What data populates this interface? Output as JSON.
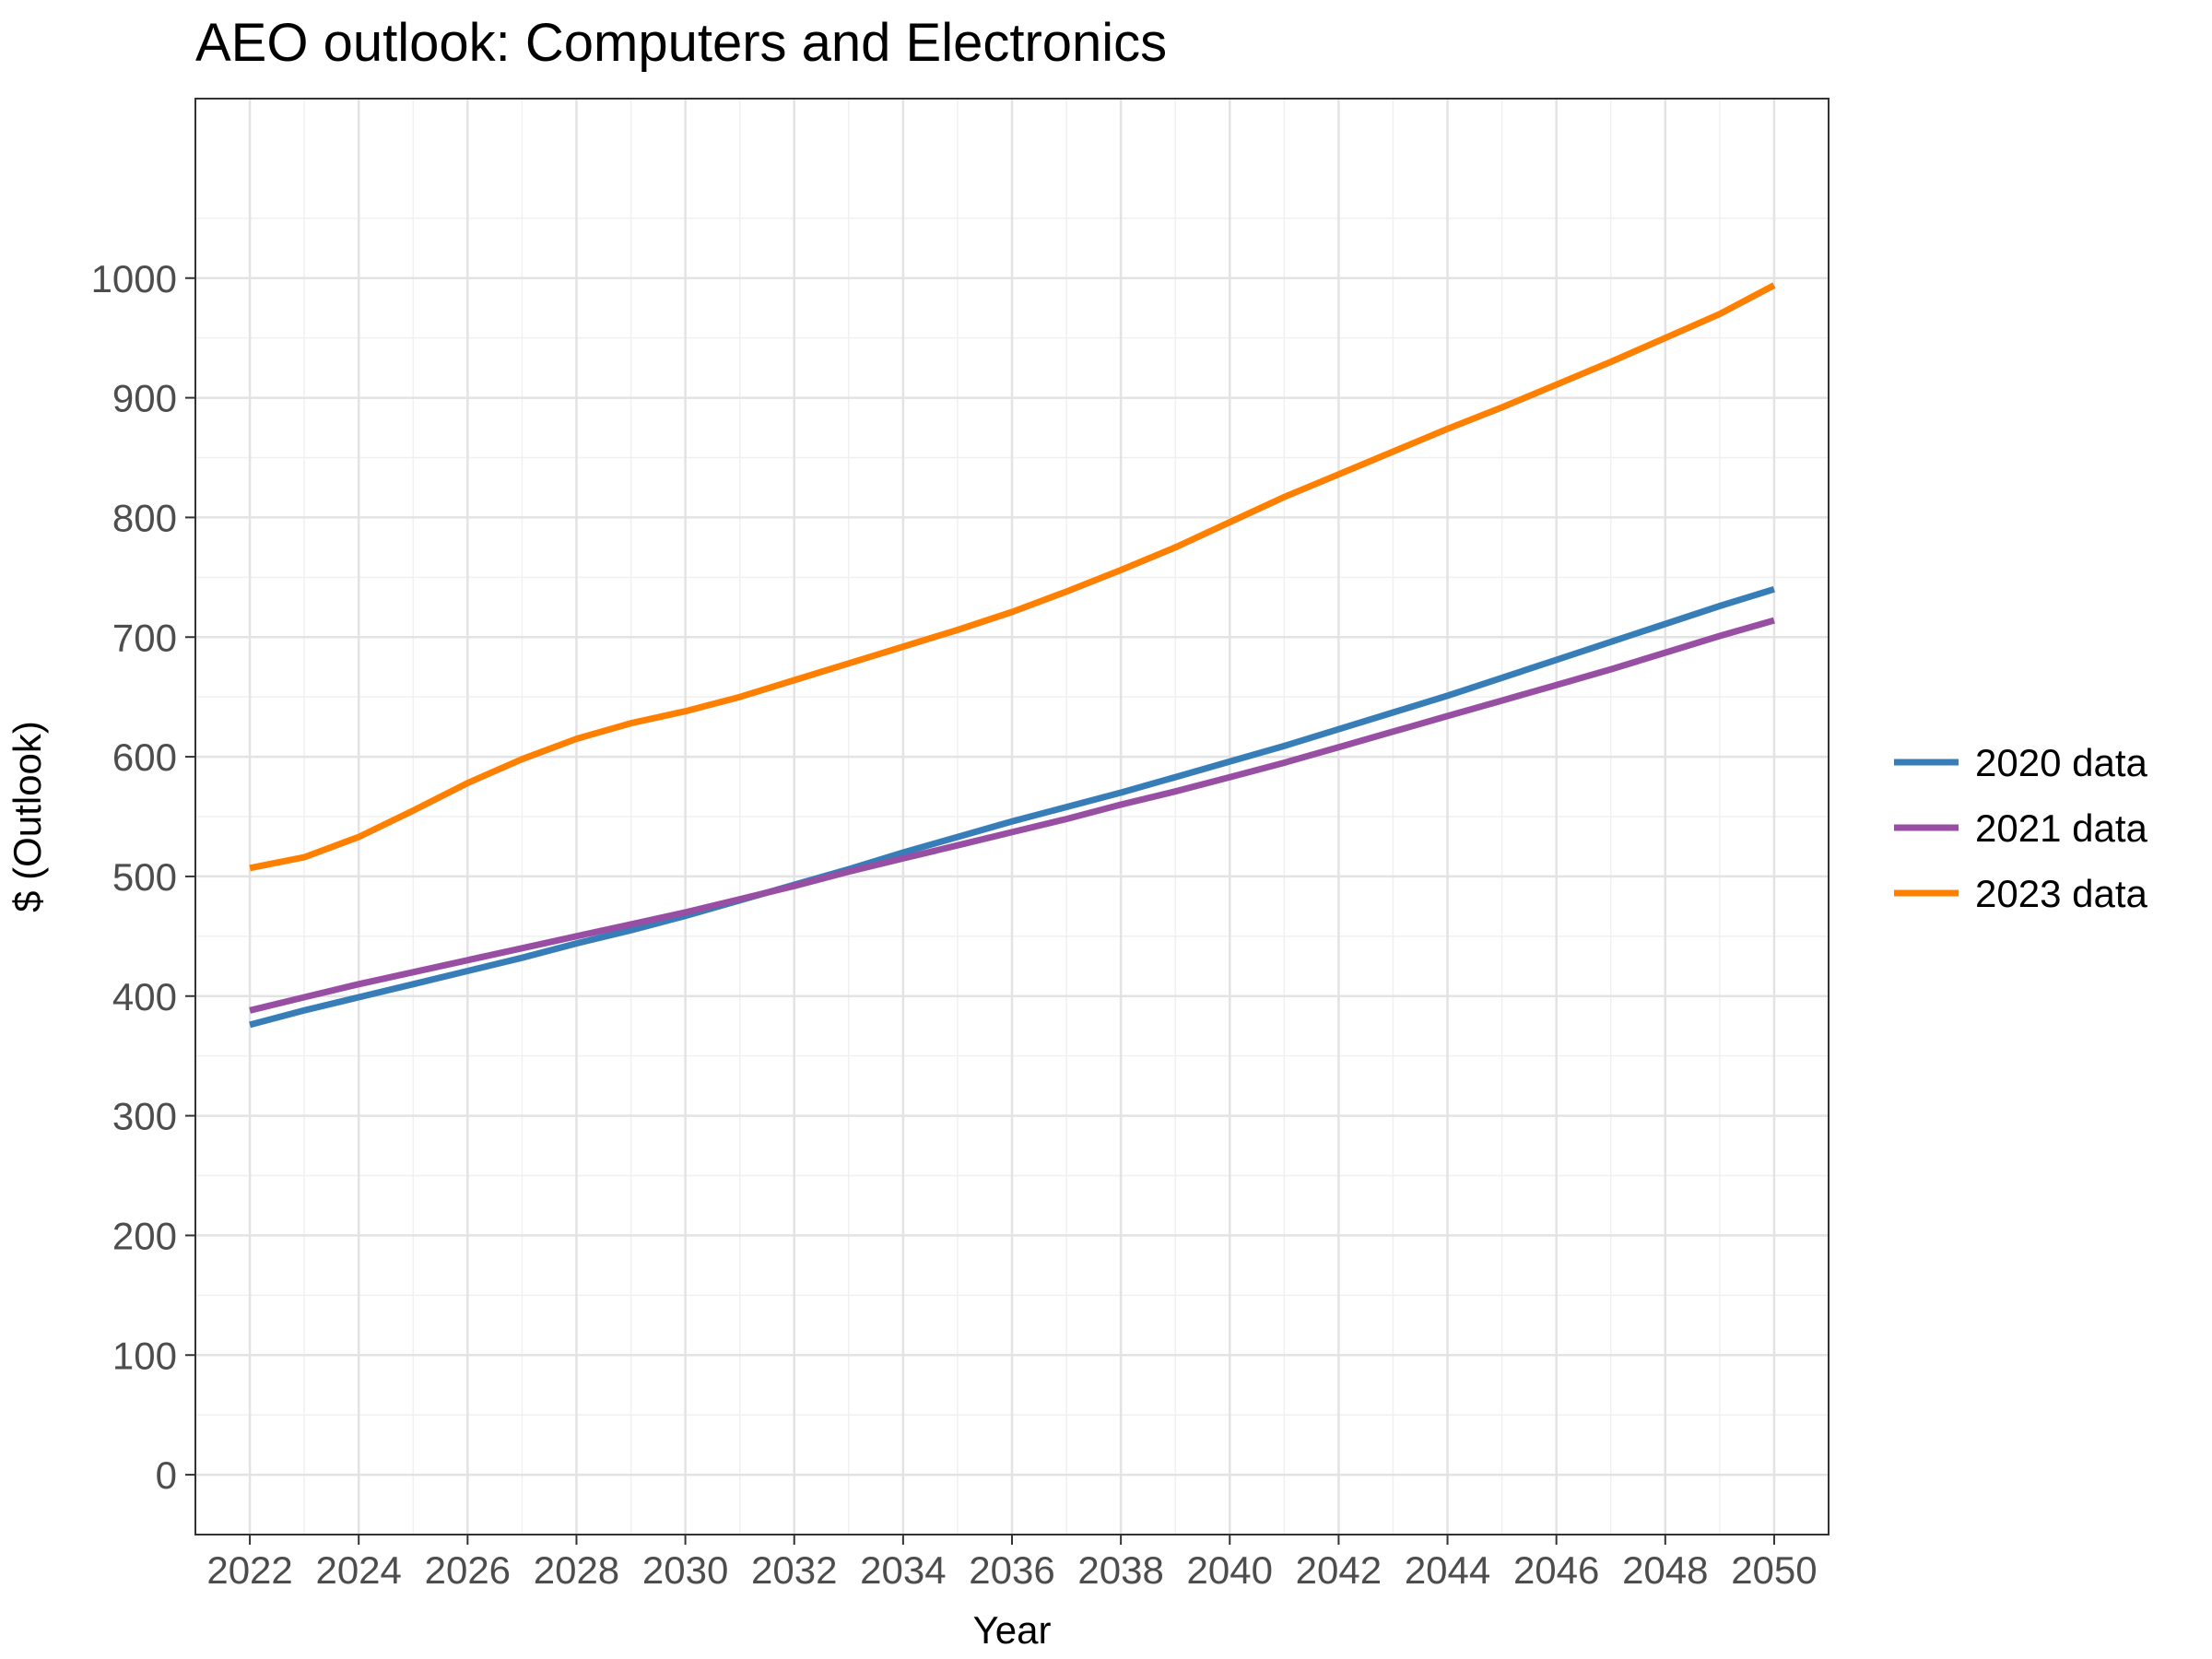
{
  "chart_data": {
    "type": "line",
    "title": "AEO outlook: Computers and Electronics",
    "xlabel": "Year",
    "ylabel": "$ (Outlook)",
    "xlim": [
      2021,
      2051
    ],
    "ylim": [
      -50,
      1150
    ],
    "x_ticks": [
      "2022",
      "2024",
      "2026",
      "2028",
      "2030",
      "2032",
      "2034",
      "2036",
      "2038",
      "2040",
      "2042",
      "2044",
      "2046",
      "2048",
      "2050"
    ],
    "y_ticks": [
      "0",
      "100",
      "200",
      "300",
      "400",
      "500",
      "600",
      "700",
      "800",
      "900",
      "1000"
    ],
    "grid": true,
    "legend_position": "right",
    "x": [
      2022,
      2023,
      2024,
      2025,
      2026,
      2027,
      2028,
      2029,
      2030,
      2031,
      2032,
      2033,
      2034,
      2035,
      2036,
      2037,
      2038,
      2039,
      2040,
      2041,
      2042,
      2043,
      2044,
      2045,
      2046,
      2047,
      2048,
      2049,
      2050
    ],
    "series": [
      {
        "name": "2020 data",
        "color": "#377eb8",
        "values": [
          376,
          388,
          399,
          410,
          421,
          432,
          444,
          455,
          467,
          480,
          493,
          506,
          520,
          533,
          546,
          558,
          570,
          583,
          596,
          609,
          623,
          637,
          651,
          666,
          681,
          696,
          711,
          726,
          740
        ]
      },
      {
        "name": "2021 data",
        "color": "#984ea3",
        "values": [
          388,
          399,
          410,
          420,
          430,
          440,
          450,
          460,
          470,
          481,
          492,
          504,
          515,
          526,
          537,
          548,
          560,
          571,
          583,
          595,
          608,
          621,
          634,
          647,
          660,
          673,
          687,
          701,
          714
        ]
      },
      {
        "name": "2023 data",
        "color": "#ff7f00",
        "values": [
          507,
          516,
          533,
          555,
          578,
          598,
          615,
          628,
          638,
          650,
          664,
          678,
          692,
          706,
          721,
          738,
          756,
          775,
          796,
          817,
          836,
          855,
          874,
          892,
          911,
          930,
          950,
          970,
          994
        ]
      }
    ]
  }
}
